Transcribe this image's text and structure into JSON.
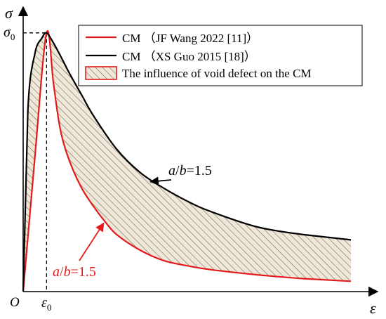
{
  "chart_data": {
    "type": "line",
    "title": "",
    "xlabel": "ε",
    "ylabel": "σ",
    "origin_label": "O",
    "x_tick_label": "ε",
    "x_tick_sub": "0",
    "y_tick_label": "σ",
    "y_tick_sub": "0",
    "xlim": [
      0,
      14
    ],
    "ylim": [
      0,
      1.1
    ],
    "peak": {
      "x": 1,
      "y": 1
    },
    "grid": false,
    "legend": {
      "position": "top-right",
      "entries": [
        {
          "label": "CM （JF Wang 2022 [11]）",
          "color": "#e31a1c",
          "kind": "line"
        },
        {
          "label": "CM （XS Guo 2015 [18]）",
          "color": "#000000",
          "kind": "line"
        },
        {
          "label": "The influence of void defect on the CM",
          "color": "#e31a1c",
          "kind": "hatch"
        }
      ]
    },
    "series": [
      {
        "name": "CM （JF Wang 2022 [11]）",
        "color": "#e31a1c",
        "x": [
          0,
          0.5,
          1,
          1.3,
          1.6,
          2,
          2.5,
          3,
          3.5,
          4,
          5,
          6,
          7,
          8,
          10,
          12,
          14
        ],
        "y": [
          0,
          0.52,
          1,
          0.8,
          0.62,
          0.5,
          0.4,
          0.33,
          0.27,
          0.22,
          0.16,
          0.12,
          0.1,
          0.085,
          0.065,
          0.05,
          0.04
        ]
      },
      {
        "name": "CM （XS Guo 2015 [18]）",
        "color": "#000000",
        "x": [
          0,
          0.2,
          0.5,
          0.8,
          1,
          1.3,
          1.6,
          2,
          2.5,
          3,
          4,
          5,
          6,
          7,
          8,
          10,
          12,
          14
        ],
        "y": [
          0,
          0.7,
          0.92,
          0.98,
          1,
          0.96,
          0.91,
          0.84,
          0.76,
          0.68,
          0.55,
          0.46,
          0.4,
          0.35,
          0.31,
          0.25,
          0.22,
          0.2
        ]
      }
    ],
    "annotations": [
      {
        "prefix": "a",
        "slash": "/",
        "var": "b",
        "value": "=1.5",
        "color": "#000000",
        "target_series": 1,
        "target_x": 5.5
      },
      {
        "prefix": "a",
        "slash": "/",
        "var": "b",
        "value": "=1.5",
        "color": "#e31a1c",
        "target_series": 0,
        "target_x": 3.5
      }
    ]
  }
}
